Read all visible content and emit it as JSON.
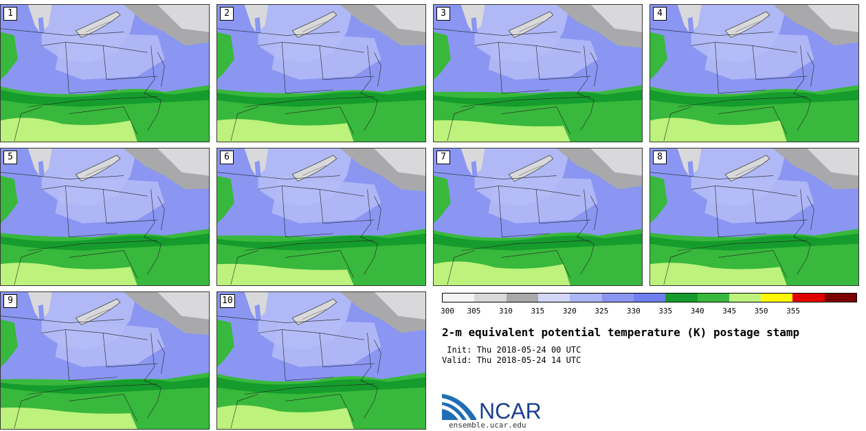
{
  "members": [
    "1",
    "2",
    "3",
    "4",
    "5",
    "6",
    "7",
    "8",
    "9",
    "10"
  ],
  "colorbar": {
    "ticks": [
      "300",
      "305",
      "310",
      "315",
      "320",
      "325",
      "330",
      "335",
      "340",
      "345",
      "350",
      "355"
    ],
    "colors": [
      "#f4f4f6",
      "#d9d9db",
      "#a9a9ab",
      "#d3d6f6",
      "#aab6f6",
      "#8a96f2",
      "#6f7ff0",
      "#159c2c",
      "#38b83c",
      "#bdf27c",
      "#fff800",
      "#e10000",
      "#7d0000"
    ]
  },
  "title": "2-m equivalent potential temperature (K) postage stamp",
  "init_line": " Init: Thu 2018-05-24 00 UTC",
  "valid_line": "Valid: Thu 2018-05-24 14 UTC",
  "logo_text": "NCAR",
  "site": "ensemble.ucar.edu",
  "map_colors": {
    "lake": "#b9b9bd",
    "gray_dark": "#a9a9ab",
    "gray_light": "#d9d9db",
    "blue_light": "#b4bcf6",
    "blue": "#8a96f2",
    "green_dark": "#159c2c",
    "green": "#38b83c",
    "green_light": "#bdf27c"
  }
}
